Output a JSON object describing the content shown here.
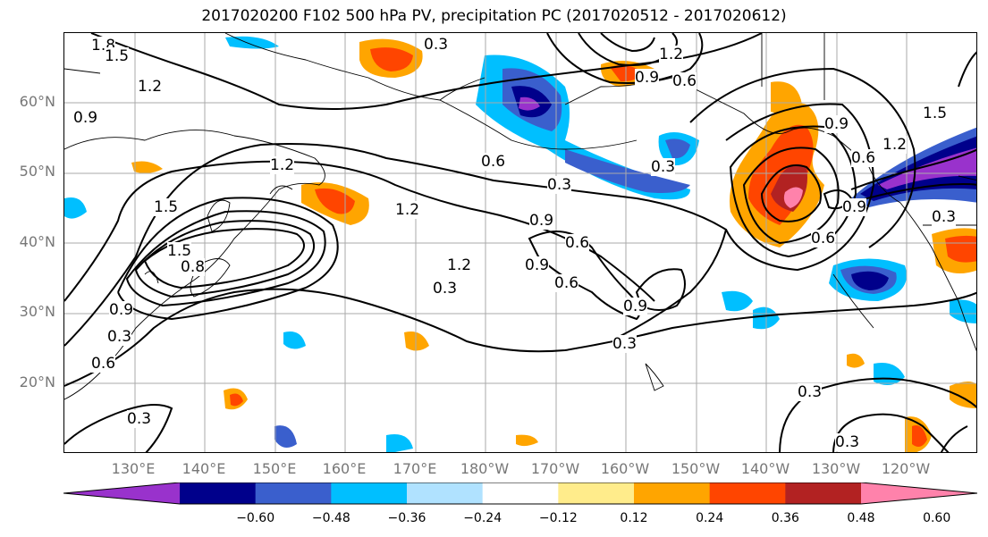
{
  "title": "2017020200 F102 500 hPa PV, precipitation PC (2017020512 - 2017020612)",
  "axes": {
    "lat_labels": [
      "60°N",
      "50°N",
      "40°N",
      "30°N",
      "20°N"
    ],
    "lon_labels": [
      "130°E",
      "140°E",
      "150°E",
      "160°E",
      "170°E",
      "180°W",
      "170°W",
      "160°W",
      "150°W",
      "140°W",
      "130°W",
      "120°W"
    ]
  },
  "colorbar": {
    "colors": [
      "#9932cc",
      "#00008b",
      "#3a5fcd",
      "#00bfff",
      "#b0e2ff",
      "#ffffff",
      "#ffec8b",
      "#ffa500",
      "#ff4500",
      "#b22222",
      "#ff82ab"
    ],
    "ticks": [
      "−0.60",
      "−0.48",
      "−0.36",
      "−0.24",
      "−0.12",
      "0.12",
      "0.24",
      "0.36",
      "0.48",
      "0.60"
    ]
  },
  "contour_labels": [
    "1.8",
    "1.5",
    "1.2",
    "0.9",
    "0.3",
    "0.6",
    "0.9",
    "1.2",
    "0.6",
    "0.3",
    "1.2",
    "1.5",
    "1.2",
    "0.9",
    "0.6",
    "1.2",
    "1.5",
    "0.8",
    "0.3",
    "0.9",
    "0.6",
    "0.9",
    "0.3",
    "0.3",
    "0.6",
    "0.3",
    "0.3",
    "0.3",
    "0.9",
    "0.6",
    "1.2",
    "1.5",
    "0.9",
    "0.3",
    "0.6",
    "0.9",
    "0.3"
  ]
}
